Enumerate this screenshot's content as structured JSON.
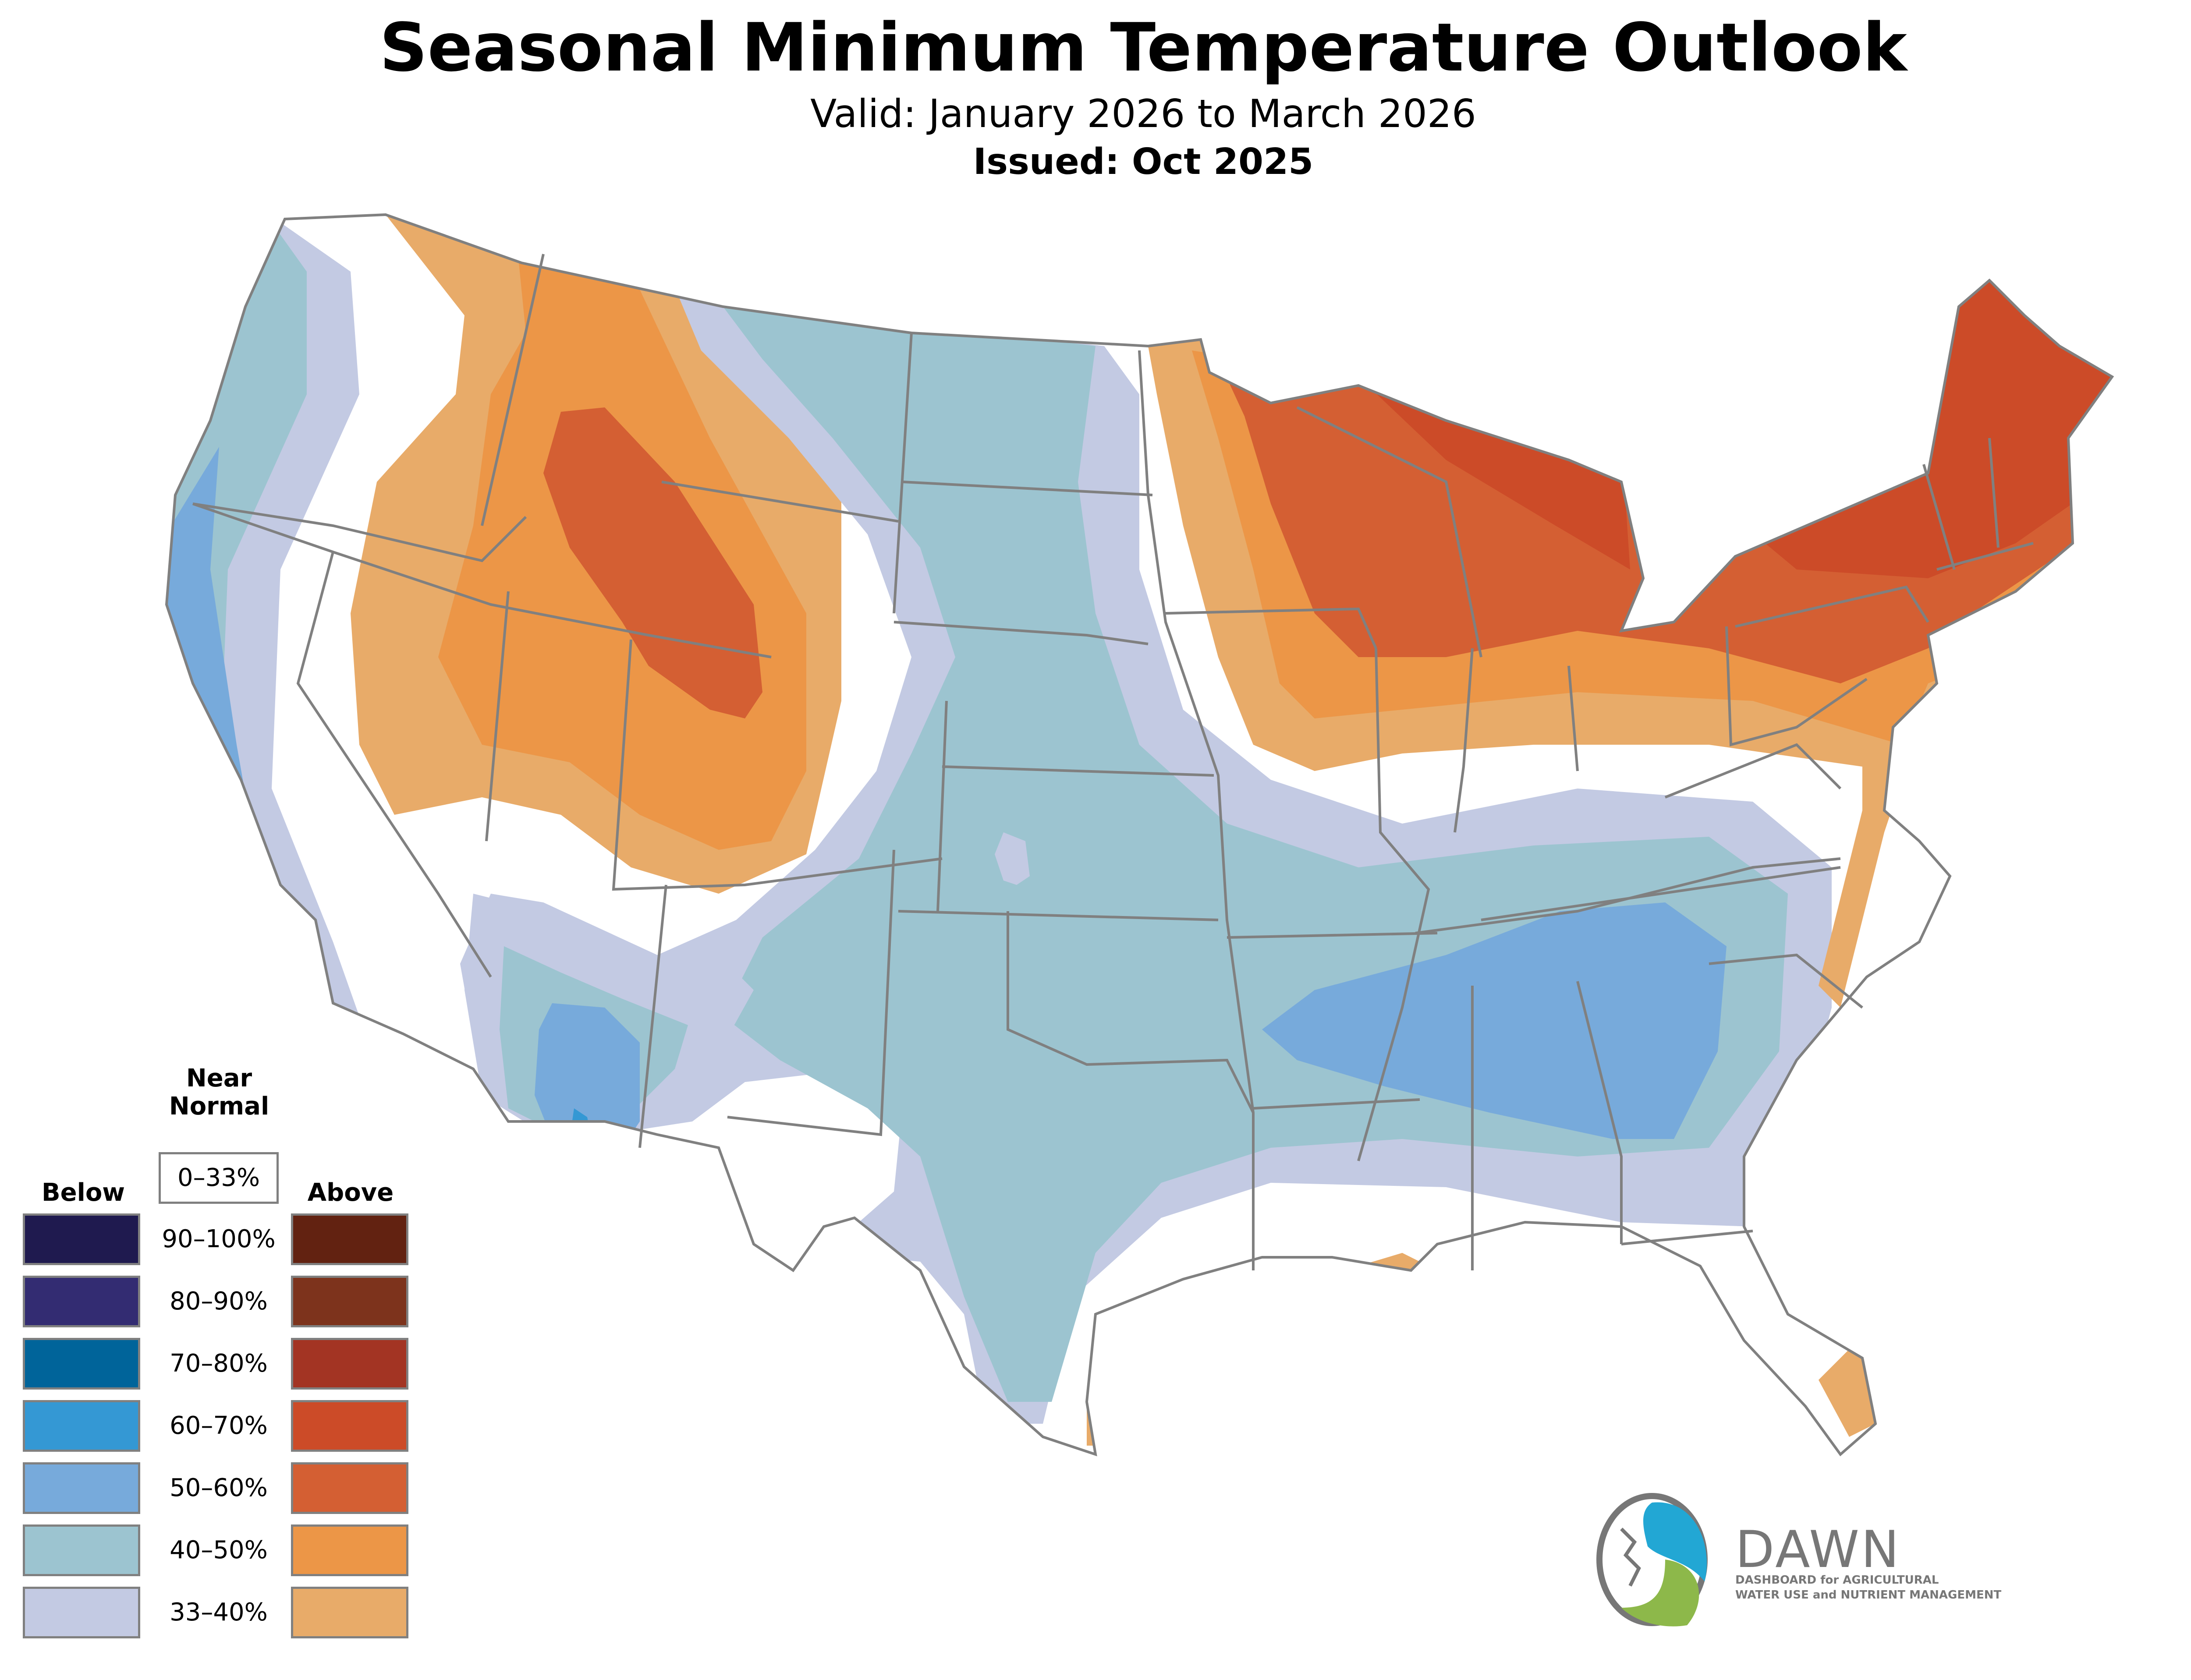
{
  "header": {
    "title": "Seasonal Minimum Temperature Outlook",
    "valid": "Valid: January 2026 to March 2026",
    "issued": "Issued: Oct 2025"
  },
  "legend": {
    "below_label": "Below",
    "near_normal_label_1": "Near",
    "near_normal_label_2": "Normal",
    "above_label": "Above",
    "near_normal_range": "0–33%",
    "rows": [
      {
        "range": "90–100%",
        "below_color": "#1f1a4f",
        "above_color": "#622211"
      },
      {
        "range": "80–90%",
        "below_color": "#332c72",
        "above_color": "#7d331c"
      },
      {
        "range": "70–80%",
        "below_color": "#00649a",
        "above_color": "#a33423"
      },
      {
        "range": "60–70%",
        "below_color": "#3498d4",
        "above_color": "#cc4b28"
      },
      {
        "range": "50–60%",
        "below_color": "#77aadb",
        "above_color": "#d45f33"
      },
      {
        "range": "40–50%",
        "below_color": "#9cc4d0",
        "above_color": "#ec9647"
      },
      {
        "range": "33–40%",
        "below_color": "#c3cae3",
        "above_color": "#e8ab69"
      }
    ]
  },
  "map": {
    "border_color": "#808080",
    "background_color": "#ffffff"
  },
  "logo": {
    "name": "DAWN",
    "subtitle_1": "DASHBOARD for AGRICULTURAL",
    "subtitle_2": "WATER USE and NUTRIENT MANAGEMENT",
    "blue": "#22a7d4",
    "green": "#8db84a",
    "gray": "#777777"
  }
}
